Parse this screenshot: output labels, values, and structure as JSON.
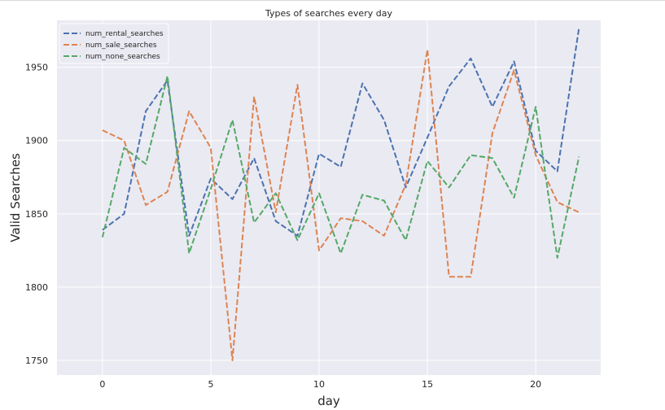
{
  "chart_data": {
    "type": "line",
    "title": "Types of searches every day",
    "xlabel": "day",
    "ylabel": "Valid Searches",
    "x": [
      0,
      1,
      2,
      3,
      4,
      5,
      6,
      7,
      8,
      9,
      10,
      11,
      12,
      13,
      14,
      15,
      16,
      17,
      18,
      19,
      20,
      21,
      22
    ],
    "xlim": [
      -2.1,
      23.0
    ],
    "ylim": [
      1740,
      1982
    ],
    "xticks": [
      0,
      5,
      10,
      15,
      20
    ],
    "yticks": [
      1750,
      1800,
      1850,
      1900,
      1950
    ],
    "grid": true,
    "legend_position": "top-left",
    "line_style": "dashed",
    "series": [
      {
        "name": "num_rental_searches",
        "color": "#4c72b0",
        "values": [
          1839,
          1850,
          1920,
          1941,
          1835,
          1874,
          1860,
          1888,
          1845,
          1835,
          1891,
          1882,
          1939,
          1914,
          1868,
          1902,
          1937,
          1956,
          1923,
          1954,
          1893,
          1879,
          1977
        ]
      },
      {
        "name": "num_sale_searches",
        "color": "#dd8452",
        "values": [
          1907,
          1900,
          1856,
          1865,
          1920,
          1895,
          1750,
          1930,
          1851,
          1938,
          1825,
          1847,
          1845,
          1835,
          1870,
          1962,
          1807,
          1807,
          1905,
          1948,
          1890,
          1858,
          1851
        ]
      },
      {
        "name": "num_none_searches",
        "color": "#55a868",
        "values": [
          1834,
          1895,
          1884,
          1944,
          1823,
          1867,
          1914,
          1844,
          1864,
          1832,
          1864,
          1823,
          1863,
          1859,
          1832,
          1886,
          1868,
          1890,
          1888,
          1861,
          1923,
          1820,
          1889
        ]
      }
    ]
  }
}
